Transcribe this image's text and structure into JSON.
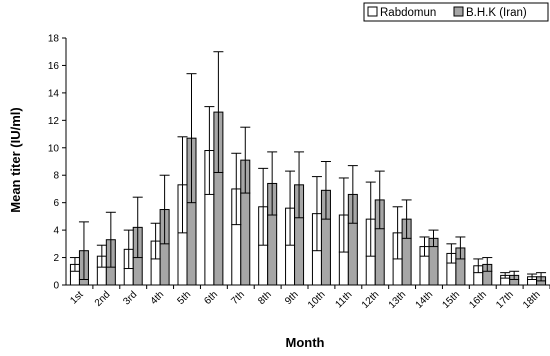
{
  "chart_data": {
    "type": "bar",
    "title": "",
    "xlabel": "Month",
    "ylabel": "Mean titer (IU/ml)",
    "ylim": [
      0,
      18
    ],
    "yticks": [
      0,
      2,
      4,
      6,
      8,
      10,
      12,
      14,
      16,
      18
    ],
    "grid": false,
    "legend_position": "top-right",
    "categories": [
      "1st",
      "2nd",
      "3rd",
      "4th",
      "5th",
      "6th",
      "7th",
      "8th",
      "9th",
      "10th",
      "11th",
      "12th",
      "13th",
      "14th",
      "15th",
      "16th",
      "17th",
      "18th"
    ],
    "series": [
      {
        "name": "Rabdomun",
        "fill": "#ffffff",
        "values": [
          1.5,
          2.1,
          2.6,
          3.2,
          7.3,
          9.8,
          7.0,
          5.7,
          5.6,
          5.2,
          5.1,
          4.8,
          3.8,
          2.8,
          2.3,
          1.4,
          0.7,
          0.6
        ],
        "errors": [
          0.5,
          0.8,
          1.4,
          1.3,
          3.5,
          3.2,
          2.6,
          2.8,
          2.7,
          2.7,
          2.7,
          2.7,
          1.9,
          0.7,
          0.7,
          0.5,
          0.2,
          0.2
        ]
      },
      {
        "name": "B.H.K (Iran)",
        "fill": "#a6a6a6",
        "values": [
          2.5,
          3.3,
          4.2,
          5.5,
          10.7,
          12.6,
          9.1,
          7.4,
          7.3,
          6.9,
          6.6,
          6.2,
          4.8,
          3.4,
          2.7,
          1.5,
          0.7,
          0.6
        ],
        "errors": [
          2.1,
          2.0,
          2.2,
          2.5,
          4.7,
          4.4,
          2.4,
          2.3,
          2.4,
          2.1,
          2.1,
          2.1,
          1.4,
          0.6,
          0.8,
          0.5,
          0.3,
          0.3
        ]
      }
    ]
  }
}
